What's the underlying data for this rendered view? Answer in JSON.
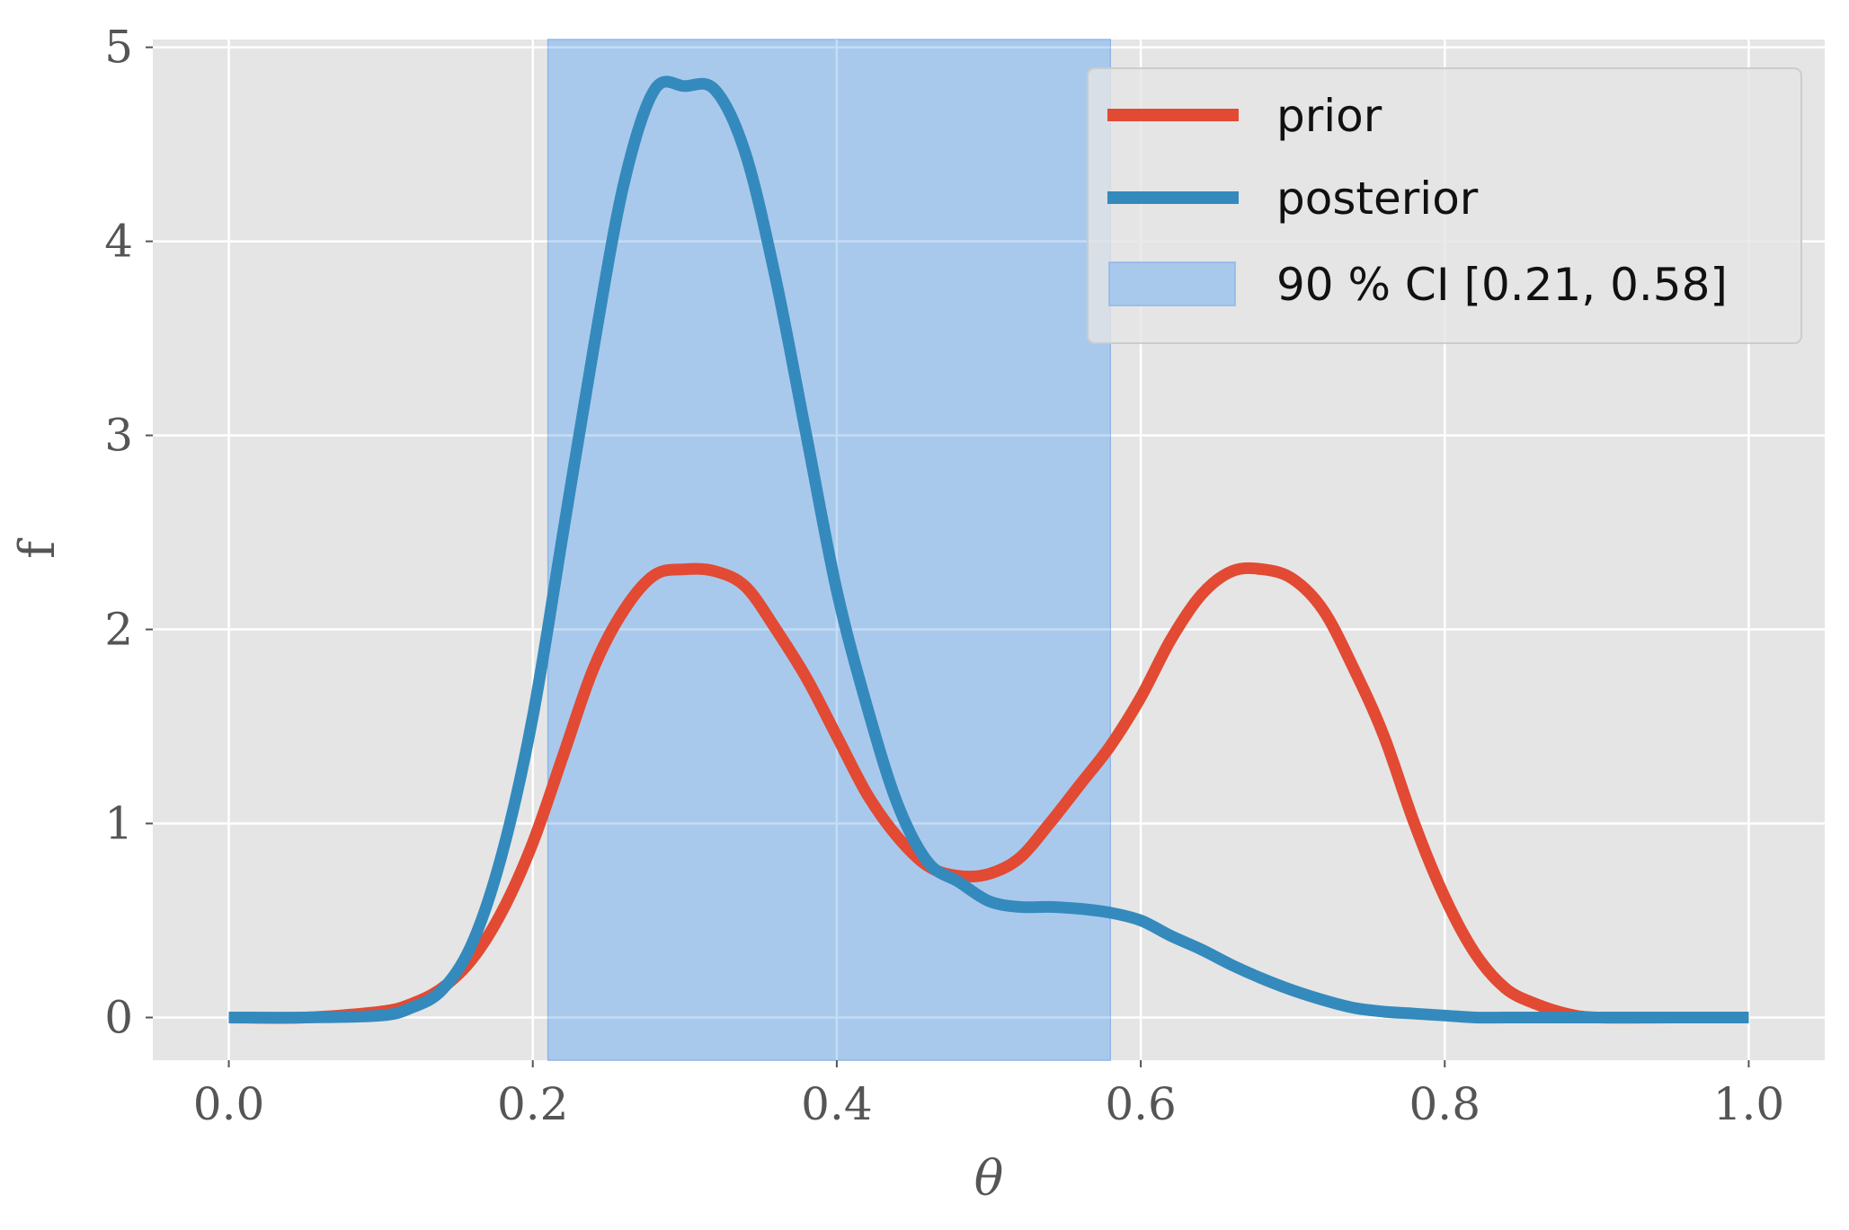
{
  "chart_data": {
    "type": "line",
    "title": "",
    "xlabel": "θ",
    "ylabel": "f",
    "xlim": [
      -0.05,
      1.05
    ],
    "ylim": [
      -0.22,
      5.04
    ],
    "xticks": [
      0.0,
      0.2,
      0.4,
      0.6,
      0.8,
      1.0
    ],
    "xtick_labels": [
      "0.0",
      "0.2",
      "0.4",
      "0.6",
      "0.8",
      "1.0"
    ],
    "yticks": [
      0,
      1,
      2,
      3,
      4,
      5
    ],
    "ytick_labels": [
      "0",
      "1",
      "2",
      "3",
      "4",
      "5"
    ],
    "grid": true,
    "legend_position": "top-right",
    "x": [
      0.0,
      0.05,
      0.1,
      0.12,
      0.14,
      0.16,
      0.18,
      0.2,
      0.22,
      0.24,
      0.26,
      0.28,
      0.3,
      0.32,
      0.34,
      0.36,
      0.38,
      0.4,
      0.42,
      0.44,
      0.46,
      0.48,
      0.5,
      0.52,
      0.54,
      0.56,
      0.58,
      0.6,
      0.62,
      0.64,
      0.66,
      0.68,
      0.7,
      0.72,
      0.74,
      0.76,
      0.78,
      0.8,
      0.82,
      0.84,
      0.86,
      0.88,
      0.9,
      0.95,
      1.0
    ],
    "series": [
      {
        "name": "prior",
        "color": "#E24A33",
        "values": [
          0.0,
          0.0,
          0.03,
          0.07,
          0.15,
          0.3,
          0.55,
          0.9,
          1.35,
          1.8,
          2.1,
          2.28,
          2.31,
          2.3,
          2.22,
          2.0,
          1.75,
          1.45,
          1.15,
          0.93,
          0.78,
          0.73,
          0.74,
          0.82,
          1.0,
          1.2,
          1.4,
          1.65,
          1.95,
          2.18,
          2.3,
          2.31,
          2.26,
          2.1,
          1.8,
          1.45,
          1.0,
          0.62,
          0.33,
          0.15,
          0.07,
          0.02,
          0.0,
          0.0,
          0.0
        ]
      },
      {
        "name": "posterior",
        "color": "#348ABD",
        "values": [
          0.0,
          0.0,
          0.01,
          0.05,
          0.14,
          0.38,
          0.85,
          1.55,
          2.5,
          3.45,
          4.3,
          4.78,
          4.8,
          4.78,
          4.45,
          3.8,
          3.0,
          2.2,
          1.6,
          1.1,
          0.8,
          0.7,
          0.6,
          0.57,
          0.57,
          0.56,
          0.54,
          0.5,
          0.42,
          0.35,
          0.27,
          0.2,
          0.14,
          0.09,
          0.05,
          0.03,
          0.02,
          0.01,
          0.0,
          0.0,
          0.0,
          0.0,
          0.0,
          0.0,
          0.0
        ]
      }
    ],
    "ci_band": {
      "label": "90 % CI [0.21, 0.58]",
      "lower": 0.21,
      "upper": 0.58,
      "color": "#a9c9ec"
    }
  }
}
